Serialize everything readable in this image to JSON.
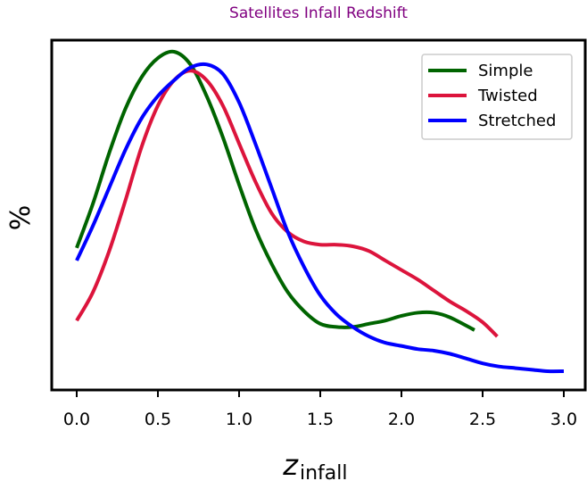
{
  "chart_data": {
    "type": "line",
    "title": "Satellites Infall Redshift",
    "title_color": "#800080",
    "xlabel": {
      "main": "z",
      "sub": "infall"
    },
    "ylabel": "%",
    "xlim": [
      -0.15,
      3.05
    ],
    "ylim": [
      0,
      1
    ],
    "xticks": [
      "0.0",
      "0.5",
      "1.0",
      "1.5",
      "2.0",
      "2.5",
      "3.0"
    ],
    "grid": false,
    "legend_position": "top-right",
    "series": [
      {
        "name": "Simple",
        "color": "#006400",
        "x": [
          0.0,
          0.1,
          0.2,
          0.3,
          0.4,
          0.5,
          0.6,
          0.7,
          0.8,
          0.9,
          1.0,
          1.1,
          1.2,
          1.3,
          1.4,
          1.5,
          1.6,
          1.7,
          1.8,
          1.9,
          2.0,
          2.1,
          2.2,
          2.3,
          2.45
        ],
        "y": [
          0.38,
          0.52,
          0.68,
          0.82,
          0.92,
          0.98,
          1.0,
          0.96,
          0.86,
          0.73,
          0.58,
          0.44,
          0.33,
          0.24,
          0.18,
          0.14,
          0.13,
          0.13,
          0.14,
          0.15,
          0.165,
          0.175,
          0.175,
          0.16,
          0.12
        ]
      },
      {
        "name": "Twisted",
        "color": "#dc143c",
        "x": [
          0.0,
          0.1,
          0.2,
          0.3,
          0.4,
          0.5,
          0.6,
          0.7,
          0.8,
          0.9,
          1.0,
          1.1,
          1.2,
          1.3,
          1.4,
          1.5,
          1.6,
          1.7,
          1.8,
          1.9,
          2.0,
          2.1,
          2.2,
          2.3,
          2.4,
          2.5,
          2.59
        ],
        "y": [
          0.15,
          0.24,
          0.37,
          0.53,
          0.7,
          0.83,
          0.91,
          0.94,
          0.91,
          0.83,
          0.71,
          0.59,
          0.49,
          0.43,
          0.4,
          0.39,
          0.39,
          0.385,
          0.37,
          0.34,
          0.31,
          0.28,
          0.245,
          0.21,
          0.18,
          0.145,
          0.1
        ]
      },
      {
        "name": "Stretched",
        "color": "#0000ff",
        "x": [
          0.0,
          0.1,
          0.2,
          0.3,
          0.4,
          0.5,
          0.6,
          0.7,
          0.8,
          0.9,
          1.0,
          1.1,
          1.2,
          1.3,
          1.4,
          1.5,
          1.6,
          1.7,
          1.8,
          1.9,
          2.0,
          2.1,
          2.2,
          2.3,
          2.4,
          2.5,
          2.6,
          2.7,
          2.8,
          2.9,
          3.0
        ],
        "y": [
          0.34,
          0.45,
          0.57,
          0.69,
          0.79,
          0.86,
          0.91,
          0.95,
          0.96,
          0.93,
          0.84,
          0.71,
          0.57,
          0.43,
          0.32,
          0.23,
          0.17,
          0.13,
          0.1,
          0.08,
          0.07,
          0.06,
          0.055,
          0.045,
          0.03,
          0.015,
          0.005,
          0.0,
          -0.005,
          -0.01,
          -0.01
        ]
      }
    ]
  }
}
